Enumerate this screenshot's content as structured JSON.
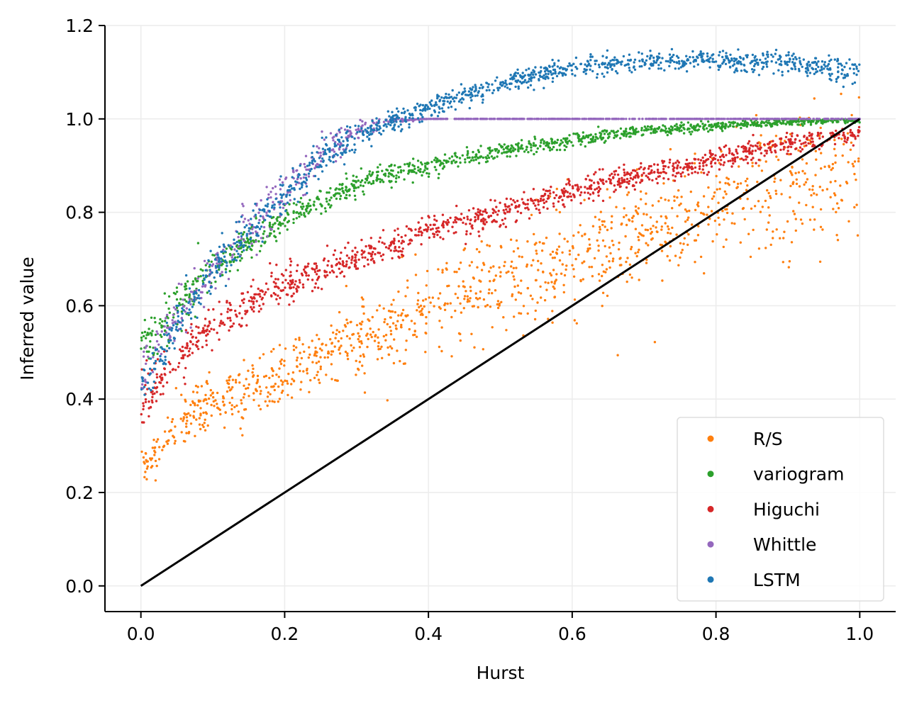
{
  "chart_data": {
    "type": "scatter",
    "title": "",
    "xlabel": "Hurst",
    "ylabel": "Inferred value",
    "xlim": [
      -0.05,
      1.05
    ],
    "ylim": [
      -0.055,
      1.2
    ],
    "x_ticks": [
      "0.0",
      "0.2",
      "0.4",
      "0.6",
      "0.8",
      "1.0"
    ],
    "y_ticks": [
      "0.0",
      "0.2",
      "0.4",
      "0.6",
      "0.8",
      "1.0",
      "1.2"
    ],
    "grid": true,
    "legend_position": "bottom-right",
    "reference_line": {
      "x": [
        0,
        1
      ],
      "y": [
        0,
        1
      ],
      "color": "#000000"
    },
    "series": [
      {
        "name": "R/S",
        "color": "#ff7f0e",
        "points_per_series": 1200,
        "x": [
          0.0,
          0.05,
          0.1,
          0.2,
          0.3,
          0.4,
          0.5,
          0.6,
          0.7,
          0.8,
          0.9,
          1.0
        ],
        "y": [
          0.25,
          0.34,
          0.39,
          0.46,
          0.53,
          0.6,
          0.65,
          0.7,
          0.76,
          0.81,
          0.86,
          0.9
        ],
        "spread": [
          0.02,
          0.025,
          0.03,
          0.035,
          0.04,
          0.045,
          0.05,
          0.055,
          0.06,
          0.065,
          0.07,
          0.07
        ]
      },
      {
        "name": "variogram",
        "color": "#2ca02c",
        "points_per_series": 1200,
        "x": [
          0.0,
          0.05,
          0.1,
          0.2,
          0.3,
          0.4,
          0.5,
          0.6,
          0.7,
          0.8,
          0.9,
          1.0
        ],
        "y": [
          0.5,
          0.6,
          0.68,
          0.79,
          0.86,
          0.9,
          0.93,
          0.955,
          0.975,
          0.985,
          0.993,
          0.998
        ],
        "spread": [
          0.025,
          0.025,
          0.02,
          0.015,
          0.012,
          0.01,
          0.009,
          0.008,
          0.006,
          0.005,
          0.004,
          0.003
        ]
      },
      {
        "name": "Higuchi",
        "color": "#d62728",
        "points_per_series": 1200,
        "x": [
          0.0,
          0.05,
          0.1,
          0.2,
          0.3,
          0.4,
          0.5,
          0.6,
          0.7,
          0.8,
          0.9,
          1.0
        ],
        "y": [
          0.38,
          0.49,
          0.56,
          0.645,
          0.705,
          0.76,
          0.8,
          0.845,
          0.88,
          0.915,
          0.945,
          0.97
        ],
        "spread": [
          0.03,
          0.025,
          0.02,
          0.02,
          0.018,
          0.016,
          0.015,
          0.014,
          0.013,
          0.012,
          0.011,
          0.01
        ]
      },
      {
        "name": "Whittle",
        "color": "#9467bd",
        "points_per_series": 900,
        "x": [
          0.0,
          0.05,
          0.1,
          0.15,
          0.2,
          0.25,
          0.3,
          0.35,
          0.4,
          1.0
        ],
        "y": [
          0.45,
          0.57,
          0.68,
          0.77,
          0.85,
          0.92,
          0.975,
          0.998,
          1.0,
          1.0
        ],
        "spread": [
          0.03,
          0.025,
          0.025,
          0.025,
          0.02,
          0.018,
          0.01,
          0.003,
          0.0,
          0.0
        ]
      },
      {
        "name": "LSTM",
        "color": "#1f77b4",
        "points_per_series": 1200,
        "x": [
          0.0,
          0.05,
          0.1,
          0.15,
          0.2,
          0.25,
          0.3,
          0.35,
          0.4,
          0.5,
          0.6,
          0.7,
          0.8,
          0.9,
          1.0
        ],
        "y": [
          0.42,
          0.56,
          0.67,
          0.76,
          0.84,
          0.91,
          0.96,
          0.995,
          1.025,
          1.075,
          1.11,
          1.125,
          1.125,
          1.12,
          1.1
        ],
        "spread": [
          0.03,
          0.025,
          0.025,
          0.022,
          0.02,
          0.018,
          0.015,
          0.013,
          0.012,
          0.011,
          0.01,
          0.01,
          0.01,
          0.012,
          0.015
        ]
      }
    ]
  }
}
